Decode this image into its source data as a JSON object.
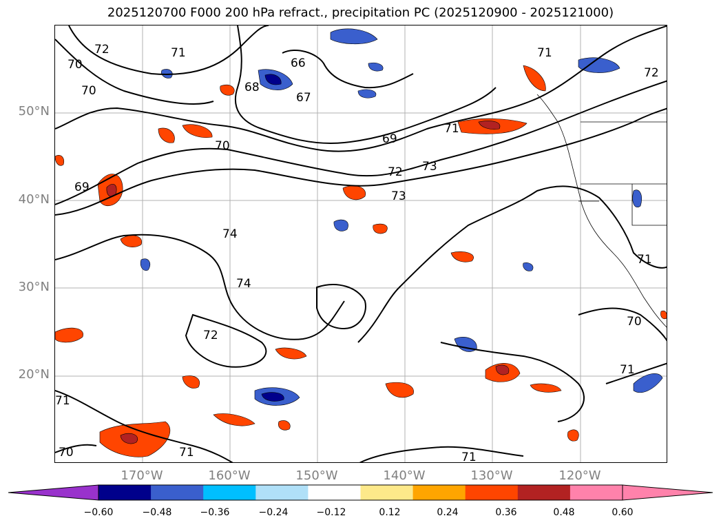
{
  "title": "2025120700 F000 200 hPa refract., precipitation PC (2025120900 - 2025121000)",
  "map": {
    "lat_labels": [
      "50°N",
      "40°N",
      "30°N",
      "20°N"
    ],
    "lon_labels": [
      "170°W",
      "160°W",
      "150°W",
      "140°W",
      "130°W",
      "120°W"
    ],
    "contour_labels": [
      "72",
      "70",
      "71",
      "66",
      "68",
      "67",
      "69",
      "70",
      "71",
      "73",
      "72",
      "73",
      "74",
      "74",
      "72",
      "71",
      "71",
      "70",
      "71",
      "70",
      "71",
      "71",
      "71",
      "69",
      "72",
      "70"
    ]
  },
  "colorbar": {
    "ticks": [
      "−0.60",
      "−0.48",
      "−0.36",
      "−0.24",
      "−0.12",
      "0.12",
      "0.24",
      "0.36",
      "0.48",
      "0.60"
    ],
    "colors": {
      "under": "#9932cc",
      "bins": [
        "#00008b",
        "#3a5fcd",
        "#00bfff",
        "#b0e0f8",
        "#ffffff",
        "#fde98a",
        "#ffa500",
        "#ff4500",
        "#b22222",
        "#ff82ab"
      ],
      "over": "#ff82ab"
    }
  }
}
